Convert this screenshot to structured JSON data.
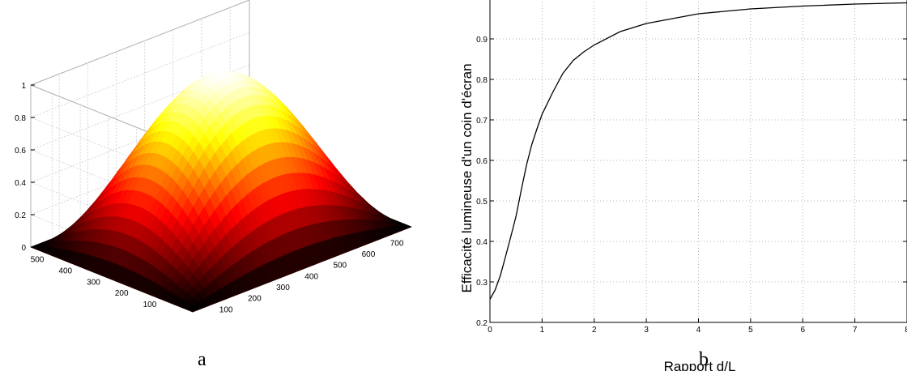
{
  "captions": {
    "left": "a",
    "right": "b"
  },
  "chart_data": [
    {
      "type": "surface",
      "x_ticks": [
        100,
        200,
        300,
        400,
        500,
        600,
        700
      ],
      "y_ticks": [
        100,
        200,
        300,
        400,
        500
      ],
      "z_ticks": [
        0,
        0.2,
        0.4,
        0.6,
        0.8,
        1
      ],
      "xlim": [
        0,
        768
      ],
      "ylim": [
        0,
        576
      ],
      "zlim": [
        0,
        1
      ],
      "peak_value": 1,
      "corner_value": 0,
      "edge_midpoint_value": 0.5,
      "grid": true,
      "colormap": [
        "#000000",
        "#ff0000",
        "#ffff00",
        "#ffffff"
      ]
    },
    {
      "type": "line",
      "xlabel": "Rapport d/L",
      "ylabel": "Efficacité lumineuse d'un coin d'écran",
      "xlim": [
        0,
        8
      ],
      "ylim": [
        0.2,
        1.0
      ],
      "x_ticks": [
        0,
        1,
        2,
        3,
        4,
        5,
        6,
        7,
        8
      ],
      "y_ticks": [
        "0.2",
        "0.3",
        "0.4",
        "0.5",
        "0.6",
        "0.7",
        "0.8",
        "0.9"
      ],
      "grid": true,
      "series": [
        {
          "x": [
            0,
            0.1,
            0.2,
            0.3,
            0.4,
            0.5,
            0.6,
            0.7,
            0.8,
            0.9,
            1.0,
            1.2,
            1.4,
            1.6,
            1.8,
            2.0,
            2.5,
            3.0,
            4.0,
            5.0,
            6.0,
            7.0,
            8.0
          ],
          "y": [
            0.257,
            0.28,
            0.316,
            0.363,
            0.412,
            0.462,
            0.526,
            0.588,
            0.638,
            0.677,
            0.714,
            0.767,
            0.815,
            0.847,
            0.868,
            0.885,
            0.918,
            0.938,
            0.962,
            0.974,
            0.981,
            0.986,
            0.989
          ],
          "color": "#000000"
        }
      ]
    }
  ]
}
